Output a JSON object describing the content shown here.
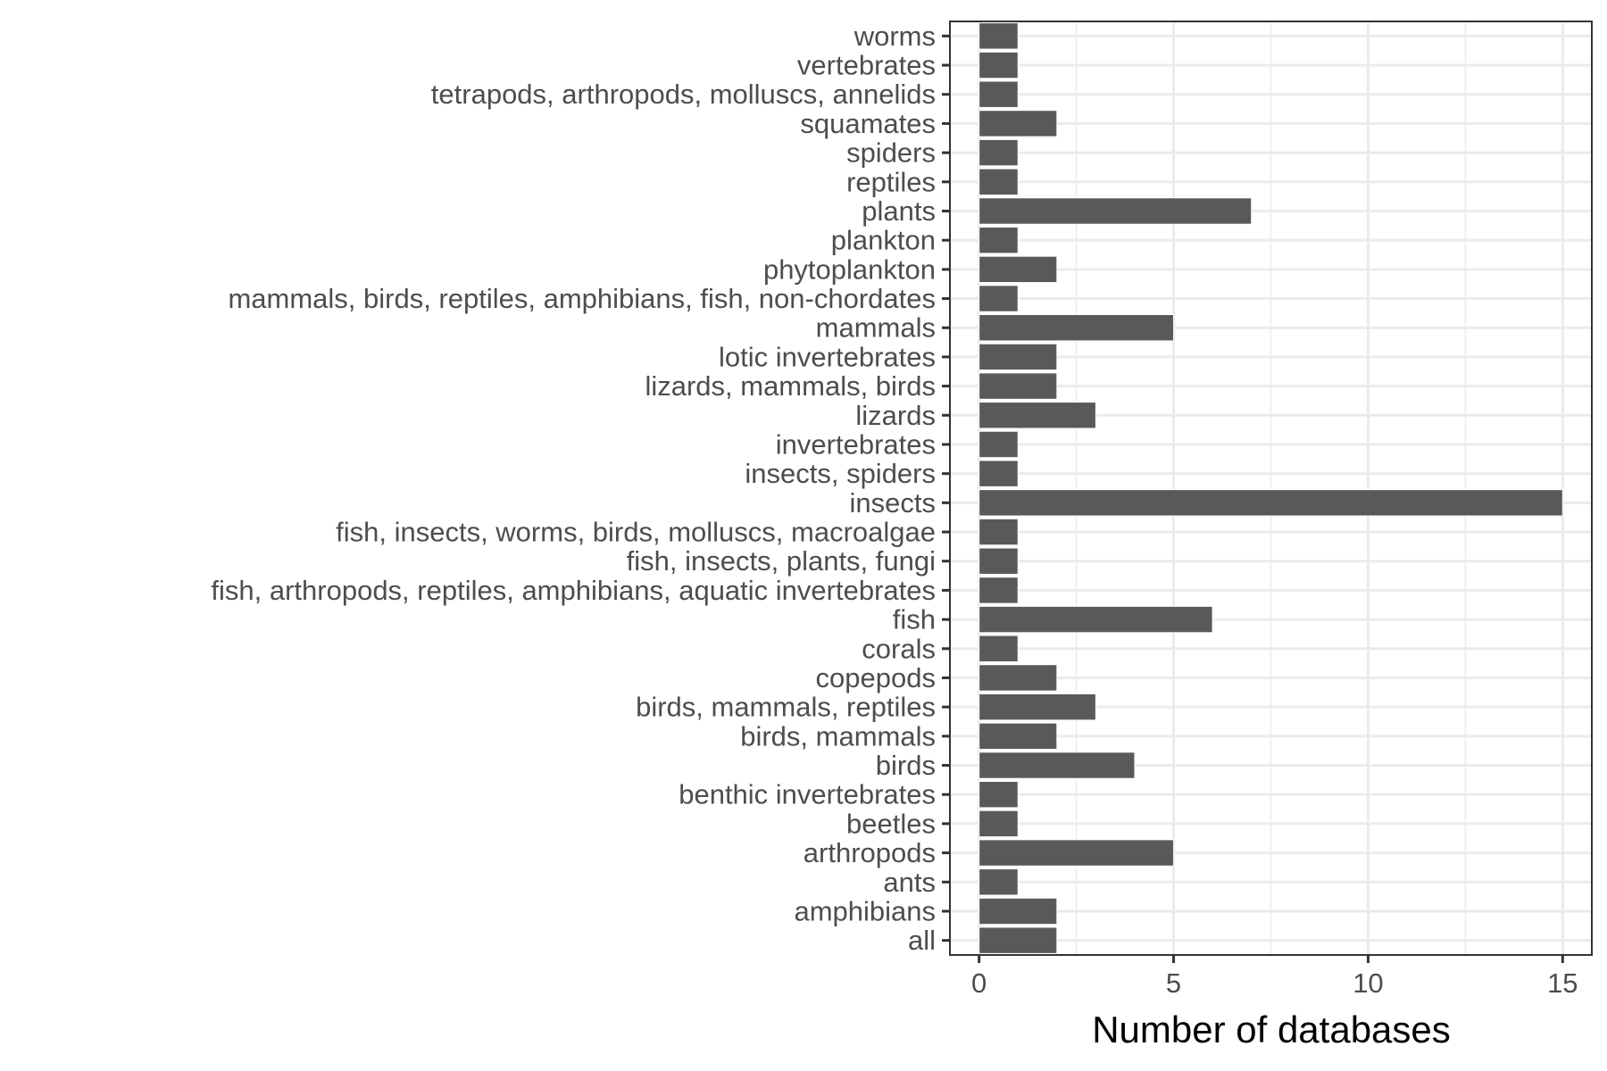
{
  "chart_data": {
    "type": "bar",
    "orientation": "horizontal",
    "categories": [
      "all",
      "amphibians",
      "ants",
      "arthropods",
      "beetles",
      "benthic invertebrates",
      "birds",
      "birds, mammals",
      "birds, mammals, reptiles",
      "copepods",
      "corals",
      "fish",
      "fish, arthropods, reptiles, amphibians, aquatic invertebrates",
      "fish, insects, plants, fungi",
      "fish, insects, worms, birds, molluscs, macroalgae",
      "insects",
      "insects, spiders",
      "invertebrates",
      "lizards",
      "lizards, mammals, birds",
      "lotic invertebrates",
      "mammals",
      "mammals, birds, reptiles, amphibians, fish, non-chordates",
      "phytoplankton",
      "plankton",
      "plants",
      "reptiles",
      "spiders",
      "squamates",
      "tetrapods, arthropods, molluscs, annelids",
      "vertebrates",
      "worms"
    ],
    "values": [
      2,
      2,
      1,
      5,
      1,
      1,
      4,
      2,
      3,
      2,
      1,
      6,
      1,
      1,
      1,
      15,
      1,
      1,
      3,
      2,
      2,
      5,
      1,
      2,
      1,
      7,
      1,
      1,
      2,
      1,
      1,
      1
    ],
    "xlabel": "Number of databases",
    "ylabel": "",
    "xlim": [
      -0.75,
      15.75
    ],
    "xticks": [
      0,
      5,
      10,
      15
    ],
    "xtick_labels": [
      "0",
      "5",
      "10",
      "15"
    ],
    "grid": true,
    "legend": "none",
    "colors": {
      "bar": "#595959",
      "bar_outline": "#ffffff",
      "grid": "#ebebeb",
      "axis": "#333333",
      "tick_text": "#4d4d4d",
      "background": "#ffffff"
    }
  }
}
